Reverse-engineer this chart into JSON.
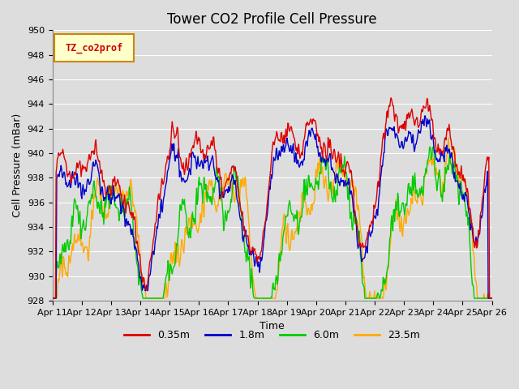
{
  "title": "Tower CO2 Profile Cell Pressure",
  "xlabel": "Time",
  "ylabel": "Cell Pressure (mBar)",
  "ylim": [
    928,
    950
  ],
  "xlim_days": [
    0,
    15
  ],
  "tick_labels": [
    "Apr 11",
    "Apr 12",
    "Apr 13",
    "Apr 14",
    "Apr 15",
    "Apr 16",
    "Apr 17",
    "Apr 18",
    "Apr 19",
    "Apr 20",
    "Apr 21",
    "Apr 22",
    "Apr 23",
    "Apr 24",
    "Apr 25",
    "Apr 26"
  ],
  "series_labels": [
    "0.35m",
    "1.8m",
    "6.0m",
    "23.5m"
  ],
  "series_colors": [
    "#dd0000",
    "#0000cc",
    "#00cc00",
    "#ffaa00"
  ],
  "legend_label": "TZ_co2prof",
  "legend_bg": "#ffffcc",
  "legend_border": "#cc8800",
  "bg_color": "#dddddd",
  "grid_color": "#ffffff",
  "title_fontsize": 12,
  "axis_fontsize": 9,
  "tick_fontsize": 8
}
